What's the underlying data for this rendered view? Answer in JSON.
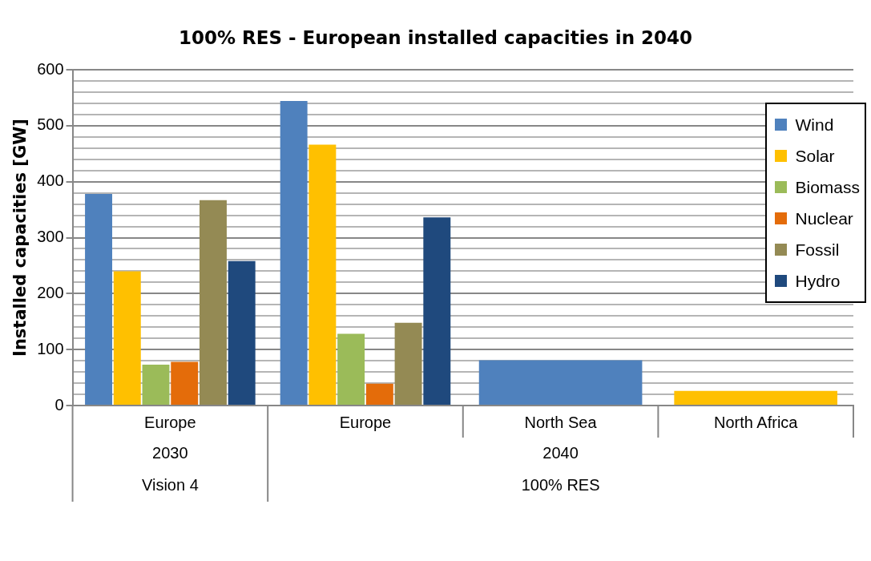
{
  "chart_data": {
    "type": "bar",
    "title": "100% RES - European installed capacities in 2040",
    "ylabel": "Installed capacities [GW]",
    "categories": [
      "Europe",
      "Europe",
      "North Sea",
      "North Africa"
    ],
    "annotations": [
      "2030",
      "2040",
      "Vision 4",
      "100% RES"
    ],
    "series": [
      {
        "name": "Wind",
        "color": "#4f81bd",
        "values": [
          378,
          544,
          81,
          null
        ]
      },
      {
        "name": "Solar",
        "color": "#ffc000",
        "values": [
          240,
          466,
          null,
          26
        ]
      },
      {
        "name": "Biomass",
        "color": "#9bbb59",
        "values": [
          73,
          128,
          null,
          null
        ]
      },
      {
        "name": "Nuclear",
        "color": "#e46c0a",
        "values": [
          78,
          39,
          null,
          null
        ]
      },
      {
        "name": "Fossil",
        "color": "#948a54",
        "values": [
          367,
          148,
          null,
          null
        ]
      },
      {
        "name": "Hydro",
        "color": "#1f497d",
        "values": [
          258,
          336,
          null,
          null
        ]
      }
    ],
    "ylim": [
      0,
      600
    ],
    "yticks": [
      0,
      {
        "value": 20,
        "label": null
      },
      {
        "value": 40,
        "label": null
      },
      {
        "value": 60,
        "label": null
      },
      {
        "value": 80,
        "label": null
      },
      100,
      {
        "value": 120,
        "label": null
      },
      {
        "value": 140,
        "label": null
      },
      {
        "value": 160,
        "label": null
      },
      {
        "value": 180,
        "label": null
      },
      200,
      {
        "value": 220,
        "label": null
      },
      {
        "value": 240,
        "label": null
      },
      {
        "value": 260,
        "label": null
      },
      {
        "value": 280,
        "label": null
      },
      300,
      {
        "value": 320,
        "label": null
      },
      {
        "value": 340,
        "label": null
      },
      {
        "value": 360,
        "label": null
      },
      {
        "value": 380,
        "label": null
      },
      400,
      {
        "value": 420,
        "label": null
      },
      {
        "value": 440,
        "label": null
      },
      {
        "value": 460,
        "label": null
      },
      {
        "value": 480,
        "label": null
      },
      500,
      {
        "value": 520,
        "label": null
      },
      {
        "value": 540,
        "label": null
      },
      {
        "value": 560,
        "label": null
      },
      {
        "value": 580,
        "label": null
      },
      600
    ],
    "grid": "y",
    "legend": "right"
  }
}
